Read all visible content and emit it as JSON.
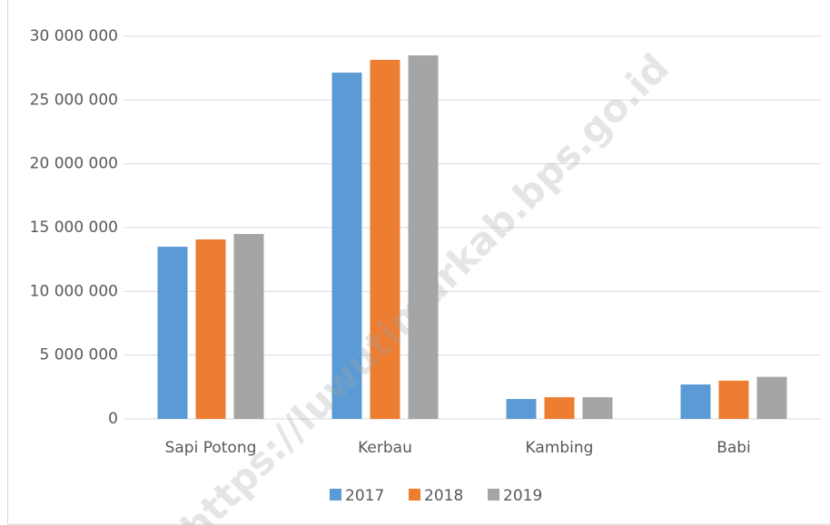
{
  "chart_data": {
    "type": "bar",
    "categories": [
      "Sapi Potong",
      "Kerbau",
      "Kambing",
      "Babi"
    ],
    "series": [
      {
        "name": "2017",
        "color": "#5b9bd5",
        "values": [
          13500000,
          27150000,
          1560000,
          2700000
        ]
      },
      {
        "name": "2018",
        "color": "#ed7d31",
        "values": [
          14070000,
          28150000,
          1700000,
          3000000
        ]
      },
      {
        "name": "2019",
        "color": "#a5a5a5",
        "values": [
          14500000,
          28500000,
          1700000,
          3300000
        ]
      }
    ],
    "ylim": [
      0,
      30000000
    ],
    "yticks": [
      0,
      {
        "value": 5000000,
        "label": "5 000 000"
      },
      {
        "value": 10000000,
        "label": "10 000 000"
      },
      {
        "value": 15000000,
        "label": "15 000 000"
      },
      {
        "value": 20000000,
        "label": "20 000 000"
      },
      {
        "value": 25000000,
        "label": "25 000 000"
      },
      {
        "value": 30000000,
        "label": "30 000 000"
      }
    ],
    "grid": true,
    "legend": "bottom",
    "watermark": "https://luwutimurkab.bps.go.id"
  }
}
